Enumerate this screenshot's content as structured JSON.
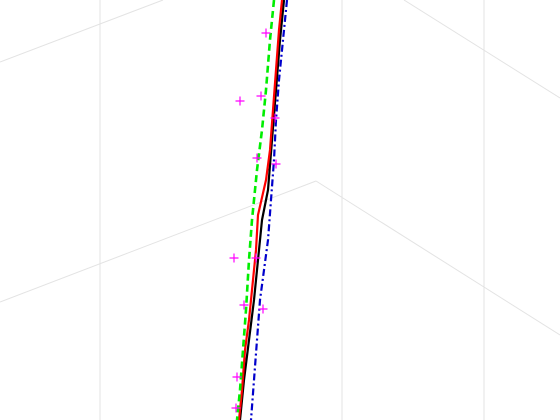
{
  "chart_data": {
    "type": "line",
    "projection": "3d",
    "title": "",
    "xlabel": "",
    "ylabel": "",
    "zlabel": "",
    "grid": true,
    "legend": false,
    "series": [
      {
        "style": "solid",
        "color": "#000000",
        "points": [
          [
            284,
            0
          ],
          [
            280,
            40
          ],
          [
            276,
            90
          ],
          [
            272,
            140
          ],
          [
            268,
            190
          ],
          [
            262,
            220
          ],
          [
            258,
            260
          ],
          [
            254,
            300
          ],
          [
            249,
            340
          ],
          [
            244,
            380
          ],
          [
            240,
            420
          ]
        ]
      },
      {
        "style": "solid",
        "color": "#ff0000",
        "points": [
          [
            282,
            0
          ],
          [
            279,
            30
          ],
          [
            276,
            70
          ],
          [
            273,
            110
          ],
          [
            270,
            150
          ],
          [
            266,
            180
          ],
          [
            258,
            215
          ],
          [
            256,
            250
          ],
          [
            252,
            290
          ],
          [
            249,
            320
          ],
          [
            245,
            350
          ],
          [
            242,
            390
          ],
          [
            239,
            420
          ]
        ]
      },
      {
        "style": "dashed",
        "color": "#00ee00",
        "points": [
          [
            274,
            0
          ],
          [
            270,
            40
          ],
          [
            266,
            90
          ],
          [
            262,
            130
          ],
          [
            257,
            170
          ],
          [
            252,
            220
          ],
          [
            249,
            260
          ],
          [
            246,
            310
          ],
          [
            243,
            350
          ],
          [
            240,
            390
          ],
          [
            237,
            420
          ]
        ]
      },
      {
        "style": "dash-dot",
        "color": "#0000cc",
        "points": [
          [
            287,
            0
          ],
          [
            283,
            40
          ],
          [
            279,
            80
          ],
          [
            276,
            120
          ],
          [
            274,
            160
          ],
          [
            271,
            200
          ],
          [
            268,
            240
          ],
          [
            264,
            270
          ],
          [
            260,
            300
          ],
          [
            257,
            340
          ],
          [
            254,
            380
          ],
          [
            251,
            420
          ]
        ]
      },
      {
        "style": "markers",
        "marker": "plus",
        "color": "#ff00ff",
        "points": [
          [
            266,
            33
          ],
          [
            240,
            101
          ],
          [
            261,
            96
          ],
          [
            275,
            118
          ],
          [
            257,
            158
          ],
          [
            276,
            164
          ],
          [
            234,
            258
          ],
          [
            256,
            258
          ],
          [
            244,
            305
          ],
          [
            263,
            309
          ],
          [
            237,
            377
          ],
          [
            236,
            408
          ]
        ]
      }
    ]
  }
}
